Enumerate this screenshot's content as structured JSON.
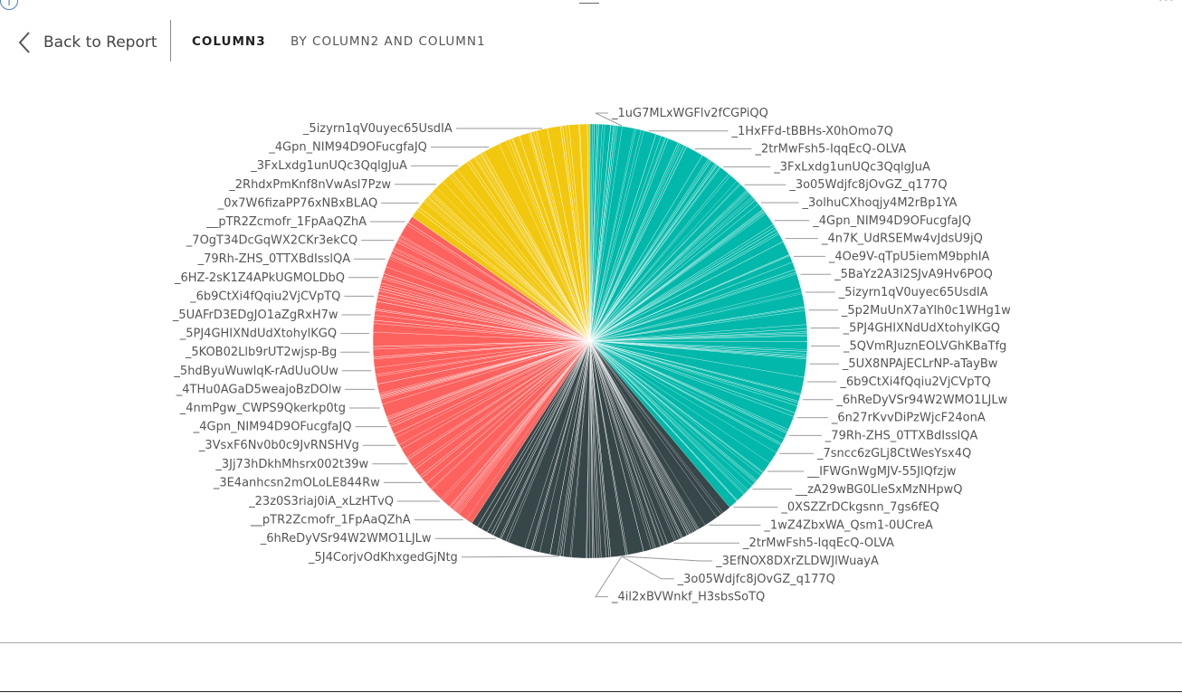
{
  "header": {
    "back_label": "Back to Report",
    "title": "COLUMN3",
    "subtitle": "BY COLUMN2 AND COLUMN1"
  },
  "icons": {
    "info": "info-icon",
    "back": "chevron-left-icon",
    "more": "more-options-icon"
  },
  "colors": {
    "teal": "#01B8AA",
    "dark": "#374649",
    "red": "#FD625E",
    "yellow": "#F2C80F"
  },
  "chart_data": {
    "type": "pie",
    "groups": [
      {
        "name": "teal",
        "color": "#01B8AA"
      },
      {
        "name": "dark",
        "color": "#374649"
      },
      {
        "name": "red",
        "color": "#FD625E"
      },
      {
        "name": "yellow",
        "color": "#F2C80F"
      }
    ],
    "labels_right": [
      "_1uG7MLxWGFlv2fCGPiQQ",
      "_1HxFFd-tBBHs-X0hOmo7Q",
      "_2trMwFsh5-IqqEcQ-OLVA",
      "_3FxLxdg1unUQc3QqlgJuA",
      "_3o05Wdjfc8jOvGZ_q177Q",
      "_3olhuCXhoqjy4M2rBp1YA",
      "_4Gpn_NIM94D9OFucgfaJQ",
      "_4n7K_UdRSEMw4vJdsU9jQ",
      "_4Oe9V-qTpU5iemM9bphIA",
      "_5BaYz2A3l2SJvA9Hv6POQ",
      "_5izyrn1qV0uyec65UsdIA",
      "_5p2MuUnX7aYlh0c1WHg1w",
      "_5PJ4GHIXNdUdXtohylKGQ",
      "_5QVmRJuznEOLVGhKBaTfg",
      "_5UX8NPAjECLrNP-aTayBw",
      "_6b9CtXi4fQqiu2VjCVpTQ",
      "_6hReDyVSr94W2WMO1LJLw",
      "_6n27rKvvDiPzWjcF24onA",
      "_79Rh-ZHS_0TTXBdIsslQA",
      "_7sncc6zGLj8CtWesYsx4Q",
      "__IFWGnWgMJV-55JlQfzjw",
      "__zA29wBG0LleSxMzNHpwQ",
      "_0XSZZrDCkgsnn_7gs6fEQ",
      "_1wZ4ZbxWA_Qsm1-0UCreA",
      "_2trMwFsh5-IqqEcQ-OLVA",
      "_3EfNOX8DXrZLDWJlWuayA",
      "_3o05Wdjfc8jOvGZ_q177Q",
      "_4il2xBVWnkf_H3sbsSoTQ"
    ],
    "labels_left": [
      "_5izyrn1qV0uyec65UsdIA",
      "_4Gpn_NIM94D9OFucgfaJQ",
      "_3FxLxdg1unUQc3QqlgJuA",
      "_2RhdxPmKnf8nVwAsl7Pzw",
      "_0x7W6fizaPP76xNBxBLAQ",
      "__pTR2Zcmofr_1FpAaQZhA",
      "_7OgT34DcGqWX2CKr3ekCQ",
      "_79Rh-ZHS_0TTXBdIsslQA",
      "_6HZ-2sK1Z4APkUGMOLDbQ",
      "_6b9CtXi4fQqiu2VjCVpTQ",
      "_5UAFrD3EDgJO1aZgRxH7w",
      "_5PJ4GHIXNdUdXtohylKGQ",
      "_5KOB02Llb9rUT2wjsp-Bg",
      "_5hdByuWuwlqK-rAdUuOUw",
      "_4THu0AGaD5weajoBzDOlw",
      "_4nmPgw_CWPS9Qkerkp0tg",
      "_4Gpn_NIM94D9OFucgfaJQ",
      "_3VsxF6Nv0b0c9JvRNSHVg",
      "_3Jj73hDkhMhsrx002t39w",
      "_3E4anhcsn2mOLoLE844Rw",
      "_23z0S3riaj0iA_xLzHTvQ",
      "__pTR2Zcmofr_1FpAaQZhA",
      "_6hReDyVSr94W2WMO1LJLw",
      "_5J4CorjvOdKhxgedGjNtg"
    ]
  }
}
